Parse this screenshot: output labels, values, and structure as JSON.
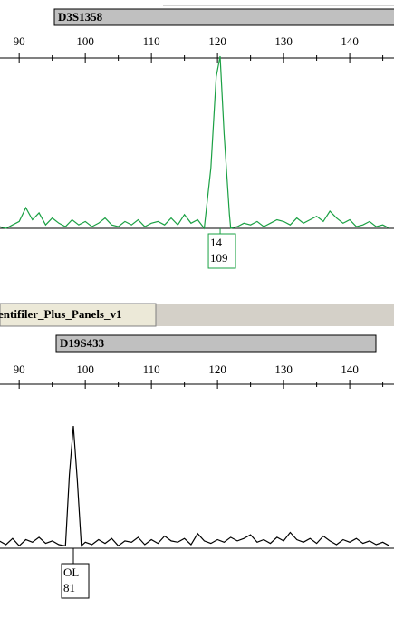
{
  "chart_data": [
    {
      "type": "line",
      "marker": "D3S1358",
      "x": [
        87,
        88,
        89,
        90,
        91,
        92,
        93,
        94,
        95,
        96,
        97,
        98,
        99,
        100,
        101,
        102,
        103,
        104,
        105,
        106,
        107,
        108,
        109,
        110,
        111,
        112,
        113,
        114,
        115,
        116,
        117,
        118,
        119,
        119.8,
        120.4,
        121,
        121.8,
        122,
        123,
        124,
        125,
        126,
        127,
        128,
        129,
        130,
        131,
        132,
        133,
        134,
        135,
        136,
        137,
        138,
        139,
        140,
        141,
        142,
        143,
        144,
        145,
        146
      ],
      "series": [
        {
          "color": "#1aa043",
          "values": [
            1,
            0,
            2,
            4,
            12,
            5,
            9,
            2,
            6,
            3,
            1,
            5,
            2,
            4,
            1,
            3,
            6,
            2,
            1,
            4,
            2,
            5,
            1,
            3,
            4,
            2,
            6,
            2,
            8,
            3,
            5,
            0,
            35,
            88,
            100,
            55,
            8,
            0,
            1,
            3,
            2,
            4,
            1,
            3,
            5,
            4,
            2,
            6,
            3,
            5,
            7,
            4,
            10,
            6,
            3,
            5,
            1,
            2,
            4,
            1,
            2,
            0
          ]
        }
      ],
      "xlim": [
        87.1,
        146.7
      ],
      "ylim": [
        0,
        100
      ],
      "xticks": [
        90,
        100,
        110,
        120,
        130,
        140
      ],
      "xminorticks": [
        95,
        105,
        115,
        125,
        135,
        145
      ],
      "annotations": [
        {
          "x": 120.4,
          "lines": [
            "14",
            "109"
          ],
          "color": "#1aa043"
        }
      ]
    },
    {
      "type": "line",
      "panel": "entifiler_Plus_Panels_v1",
      "marker": "D19S433",
      "x": [
        87,
        88,
        89,
        90,
        91,
        92,
        93,
        94,
        95,
        96,
        97,
        97.6,
        98.2,
        98.8,
        99.4,
        100,
        101,
        102,
        103,
        104,
        105,
        106,
        107,
        108,
        109,
        110,
        111,
        112,
        113,
        114,
        115,
        116,
        117,
        118,
        119,
        120,
        121,
        122,
        123,
        124,
        125,
        126,
        127,
        128,
        129,
        130,
        131,
        132,
        133,
        134,
        135,
        136,
        137,
        138,
        139,
        140,
        141,
        142,
        143,
        144,
        145,
        146
      ],
      "series": [
        {
          "color": "#000000",
          "values": [
            6,
            3,
            8,
            2,
            7,
            5,
            9,
            4,
            6,
            3,
            2,
            60,
            100,
            55,
            2,
            5,
            3,
            7,
            4,
            8,
            2,
            6,
            5,
            9,
            3,
            7,
            4,
            10,
            6,
            5,
            8,
            3,
            12,
            6,
            4,
            7,
            5,
            9,
            6,
            8,
            11,
            5,
            7,
            4,
            9,
            6,
            13,
            7,
            5,
            8,
            4,
            10,
            6,
            3,
            7,
            5,
            8,
            4,
            6,
            3,
            5,
            2
          ]
        }
      ],
      "xlim": [
        87.1,
        146.7
      ],
      "ylim": [
        0,
        100
      ],
      "xticks": [
        90,
        100,
        110,
        120,
        130,
        140
      ],
      "xminorticks": [
        95,
        105,
        115,
        125,
        135,
        145
      ],
      "annotations": [
        {
          "x": 98.2,
          "lines": [
            "OL",
            "81"
          ],
          "color": "#000000"
        }
      ]
    }
  ]
}
